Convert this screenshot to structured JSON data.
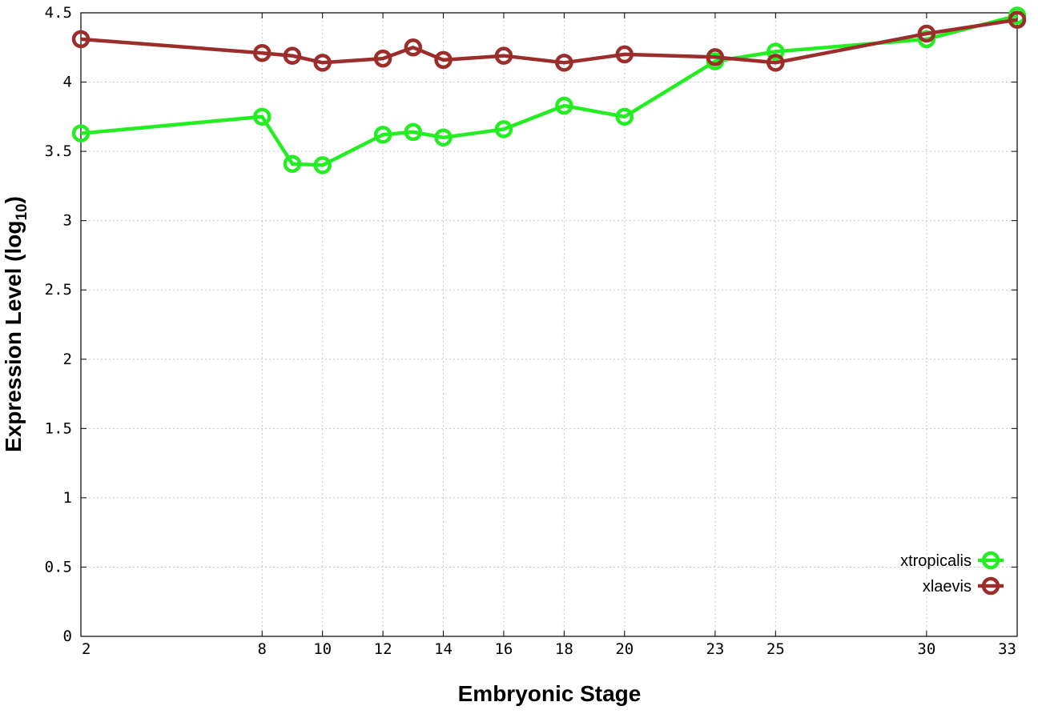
{
  "chart_data": {
    "type": "line",
    "xlabel": "Embryonic Stage",
    "ylabel": {
      "main": "Expression Level (log",
      "sub": "10",
      "close": ")"
    },
    "x": [
      2,
      8,
      9,
      10,
      12,
      13,
      14,
      16,
      18,
      20,
      23,
      25,
      30,
      33
    ],
    "xticks": [
      "2",
      "8",
      "10",
      "12",
      "14",
      "16",
      "18",
      "20",
      "23",
      "25",
      "30",
      "33"
    ],
    "yticks": [
      "0",
      "0.5",
      "1",
      "1.5",
      "2",
      "2.5",
      "3",
      "3.5",
      "4",
      "4.5"
    ],
    "ylim": [
      0,
      4.5
    ],
    "grid": true,
    "legend_position": "bottom-right",
    "series": [
      {
        "name": "xtropicalis",
        "color": "#22ee22",
        "values": [
          3.63,
          3.75,
          3.41,
          3.4,
          3.62,
          3.64,
          3.6,
          3.66,
          3.83,
          3.75,
          4.15,
          4.22,
          4.31,
          4.48
        ]
      },
      {
        "name": "xlaevis",
        "color": "#9b2d2a",
        "values": [
          4.31,
          4.21,
          4.19,
          4.14,
          4.17,
          4.25,
          4.16,
          4.19,
          4.14,
          4.2,
          4.18,
          4.14,
          4.35,
          4.45
        ]
      }
    ]
  }
}
